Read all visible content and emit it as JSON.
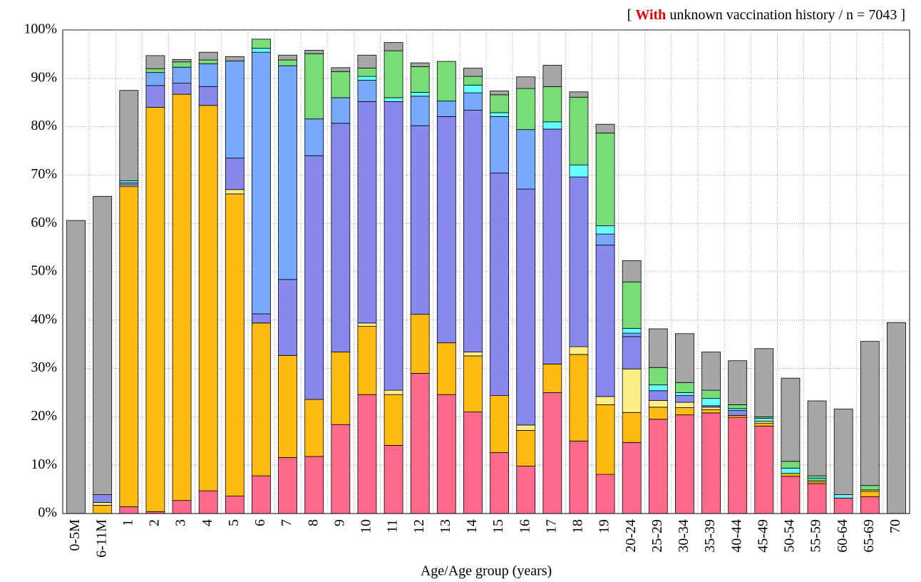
{
  "chart_data": {
    "type": "stacked_bar",
    "title": {
      "open": "[",
      "highlight": "With",
      "rest": "unknown vaccination history / n = 7043 ]"
    },
    "x_label": "Age/Age group (years)",
    "categories": [
      "0-5M",
      "6-11M",
      "1",
      "2",
      "3",
      "4",
      "5",
      "6",
      "7",
      "8",
      "9",
      "10",
      "11",
      "12",
      "13",
      "14",
      "15",
      "16",
      "17",
      "18",
      "19",
      "20-24",
      "25-29",
      "30-34",
      "35-39",
      "40-44",
      "45-49",
      "50-54",
      "55-59",
      "60-64",
      "65-69",
      "70"
    ],
    "ylim": [
      0,
      100
    ],
    "yticks": [
      {
        "value": 0,
        "label": "0%"
      },
      {
        "value": 10,
        "label": "10%"
      },
      {
        "value": 20,
        "label": "20%"
      },
      {
        "value": 30,
        "label": "30%"
      },
      {
        "value": 40,
        "label": "40%"
      },
      {
        "value": 50,
        "label": "50%"
      },
      {
        "value": 60,
        "label": "60%"
      },
      {
        "value": 70,
        "label": "70%"
      },
      {
        "value": 80,
        "label": "80%"
      },
      {
        "value": 90,
        "label": "90%"
      },
      {
        "value": 100,
        "label": "100%"
      }
    ],
    "grid": true,
    "series": [
      {
        "color": "#ff6a8c",
        "values": [
          0,
          0,
          1.4,
          0.4,
          2.7,
          4.7,
          3.6,
          7.8,
          11.6,
          11.8,
          18.4,
          24.6,
          14.1,
          29,
          24.6,
          21,
          12.6,
          9.8,
          25,
          15,
          8.1,
          14.7,
          19.5,
          20.4,
          20.8,
          19.9,
          18.1,
          7.7,
          6.2,
          3.2,
          3.5,
          0
        ]
      },
      {
        "color": "#ffbb11",
        "values": [
          0,
          1.7,
          66.2,
          83.6,
          84,
          79.7,
          62.5,
          31.6,
          21.1,
          11.8,
          15,
          14.1,
          10.5,
          12.2,
          10.7,
          11.6,
          11.8,
          7.4,
          5.9,
          17.9,
          14.4,
          6.2,
          2.5,
          1.5,
          0.7,
          0.4,
          0.6,
          0.6,
          0.4,
          0,
          1.1,
          0
        ]
      },
      {
        "color": "#ffee88",
        "values": [
          0,
          0.6,
          0.3,
          0,
          0,
          0,
          0.9,
          0,
          0,
          0,
          0,
          0.7,
          0.9,
          0,
          0,
          0.8,
          0,
          1.1,
          0,
          1.6,
          1.7,
          9,
          1.4,
          1.1,
          0.5,
          0,
          0.4,
          0,
          0.3,
          0,
          0.3,
          0
        ]
      },
      {
        "color": "#8888ee",
        "values": [
          0,
          1.6,
          0.5,
          4.5,
          2.3,
          3.9,
          6.5,
          1.9,
          15.7,
          50.4,
          47.3,
          45.8,
          59.7,
          39,
          46.8,
          50,
          46,
          48.8,
          48.6,
          35.1,
          31.3,
          6.7,
          2,
          1.4,
          0.3,
          1,
          0,
          0,
          0,
          0,
          0,
          0
        ]
      },
      {
        "color": "#77aaff",
        "values": [
          0,
          0,
          0,
          2.7,
          3.3,
          4.7,
          20.1,
          54.1,
          44.2,
          7.6,
          5.3,
          4.4,
          0,
          6.1,
          3.2,
          3.6,
          11.7,
          12.3,
          0,
          0,
          2.3,
          0.7,
          0,
          0,
          0,
          0,
          0,
          0,
          0,
          0,
          0,
          0
        ]
      },
      {
        "color": "#66ffff",
        "values": [
          0,
          0,
          0.4,
          0,
          0,
          0,
          0,
          0.8,
          0,
          0,
          0,
          0.8,
          0.8,
          0.8,
          0,
          1.6,
          0.8,
          0,
          1.5,
          2.5,
          1.7,
          1,
          1.2,
          0.6,
          1.5,
          0.4,
          0.6,
          1.1,
          0.4,
          0.7,
          0,
          0
        ]
      },
      {
        "color": "#77dd77",
        "values": [
          0,
          0,
          0,
          0.8,
          1.1,
          0.8,
          0,
          1.9,
          1.2,
          13.5,
          5.4,
          1.7,
          9.7,
          5.3,
          8.2,
          1.8,
          3.7,
          8.5,
          7.3,
          14,
          19.2,
          9.6,
          3.6,
          2.1,
          1.7,
          0.8,
          0.3,
          1.4,
          0.5,
          0,
          0.9,
          0
        ]
      },
      {
        "color": "#a6a6a6",
        "values": [
          60.6,
          61.7,
          18.7,
          2.7,
          0.5,
          1.6,
          0.9,
          0,
          1,
          0.7,
          0.8,
          2.7,
          1.7,
          0.8,
          0,
          1.7,
          0.8,
          2.4,
          4.4,
          1.1,
          1.8,
          4.4,
          8,
          10.1,
          7.9,
          9.1,
          14.1,
          17.2,
          15.5,
          17.7,
          29.8,
          39.5
        ]
      }
    ]
  }
}
